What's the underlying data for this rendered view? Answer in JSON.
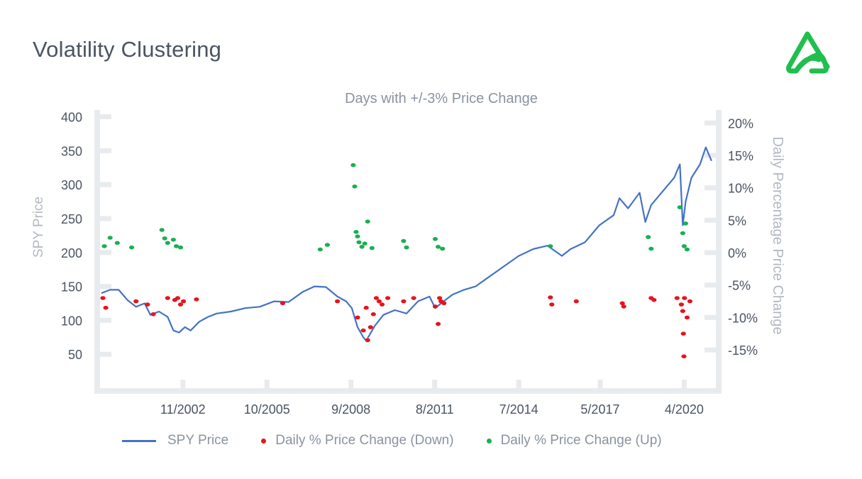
{
  "page": {
    "title": "Volatility Clustering"
  },
  "legend": {
    "items": [
      {
        "label": "SPY Price",
        "color": "#4472c4",
        "kind": "line"
      },
      {
        "label": "Daily % Price Change (Down)",
        "color": "#e8131c",
        "kind": "dot"
      },
      {
        "label": "Daily % Price Change (Up)",
        "color": "#1aaf54",
        "kind": "dot"
      }
    ]
  },
  "chart_data": {
    "type": "line",
    "title": "Days with +/-3% Price Change",
    "ylabel": "SPY Price",
    "y2label": "Daily Percentage Price Change",
    "xlabel": "",
    "xlim": [
      2000.0,
      2021.3
    ],
    "ylim": [
      0,
      410
    ],
    "y2lim": [
      -20.9,
      22.0
    ],
    "x_ticks": [
      {
        "label": "11/2002",
        "x": 2002.83
      },
      {
        "label": "10/2005",
        "x": 2005.75
      },
      {
        "label": "9/2008",
        "x": 2008.67
      },
      {
        "label": "8/2011",
        "x": 2011.58
      },
      {
        "label": "7/2014",
        "x": 2014.5
      },
      {
        "label": "5/2017",
        "x": 2017.33
      },
      {
        "label": "4/2020",
        "x": 2020.25
      }
    ],
    "y_ticks": [
      "50",
      "100",
      "150",
      "200",
      "250",
      "300",
      "350",
      "400"
    ],
    "y_tick_values": [
      50,
      100,
      150,
      200,
      250,
      300,
      350,
      400
    ],
    "y2_ticks": [
      "-15%",
      "-10%",
      "-5%",
      "0%",
      "5%",
      "10%",
      "15%",
      "20%"
    ],
    "y2_tick_values": [
      -15,
      -10,
      -5,
      0,
      5,
      10,
      15,
      20
    ],
    "grid": false,
    "legend_position": "bottom",
    "series": [
      {
        "name": "SPY Price",
        "color": "#4472c4",
        "axis": "left",
        "x": [
          2000.0,
          2000.3,
          2000.6,
          2000.9,
          2001.2,
          2001.5,
          2001.7,
          2002.0,
          2002.3,
          2002.5,
          2002.7,
          2002.9,
          2003.1,
          2003.4,
          2003.7,
          2004.0,
          2004.5,
          2005.0,
          2005.5,
          2006.0,
          2006.5,
          2007.0,
          2007.4,
          2007.8,
          2008.2,
          2008.5,
          2008.7,
          2008.9,
          2009.1,
          2009.2,
          2009.5,
          2009.8,
          2010.2,
          2010.6,
          2011.0,
          2011.4,
          2011.6,
          2011.8,
          2012.2,
          2012.6,
          2013.0,
          2013.5,
          2014.0,
          2014.5,
          2015.0,
          2015.5,
          2016.0,
          2016.3,
          2016.8,
          2017.3,
          2017.8,
          2018.0,
          2018.3,
          2018.7,
          2018.9,
          2019.1,
          2019.5,
          2019.9,
          2020.1,
          2020.2,
          2020.3,
          2020.5,
          2020.8,
          2021.0,
          2021.2
        ],
        "values": [
          140,
          145,
          145,
          130,
          120,
          125,
          108,
          113,
          105,
          85,
          82,
          90,
          85,
          98,
          105,
          110,
          113,
          118,
          120,
          128,
          127,
          142,
          150,
          149,
          135,
          128,
          118,
          90,
          75,
          70,
          92,
          108,
          115,
          110,
          128,
          135,
          118,
          125,
          138,
          145,
          150,
          165,
          180,
          195,
          205,
          210,
          195,
          205,
          215,
          240,
          255,
          280,
          265,
          288,
          245,
          270,
          290,
          310,
          330,
          240,
          275,
          310,
          330,
          355,
          335
        ]
      },
      {
        "name": "Daily % Price Change (Down)",
        "color": "#e8131c",
        "axis": "right",
        "kind": "scatter",
        "x": [
          2000.05,
          2000.15,
          2001.2,
          2001.6,
          2001.8,
          2002.3,
          2002.55,
          2002.65,
          2002.75,
          2002.85,
          2003.3,
          2006.3,
          2008.2,
          2008.9,
          2009.1,
          2009.2,
          2009.25,
          2009.35,
          2009.45,
          2009.55,
          2009.65,
          2009.75,
          2009.95,
          2010.5,
          2010.85,
          2011.6,
          2011.7,
          2011.75,
          2011.8,
          2011.9,
          2015.6,
          2015.65,
          2016.5,
          2018.1,
          2018.15,
          2019.1,
          2019.2,
          2020.0,
          2020.15,
          2020.2,
          2020.22,
          2020.24,
          2020.26,
          2020.35,
          2020.45
        ],
        "values": [
          -7.0,
          -8.5,
          -7.5,
          -8.0,
          -9.5,
          -7.0,
          -7.3,
          -7.0,
          -8.0,
          -7.5,
          -7.2,
          -7.8,
          -7.5,
          -10.0,
          -12.0,
          -8.5,
          -13.5,
          -11.5,
          -9.5,
          -7.0,
          -7.5,
          -8.0,
          -7.0,
          -7.5,
          -7.0,
          -8.3,
          -11.0,
          -7.0,
          -7.5,
          -7.8,
          -6.9,
          -8.0,
          -7.5,
          -7.8,
          -8.3,
          -7.0,
          -7.3,
          -7.0,
          -8.0,
          -9.0,
          -12.5,
          -16.0,
          -7.0,
          -10.0,
          -7.5
        ]
      },
      {
        "name": "Daily % Price Change (Up)",
        "color": "#1aaf54",
        "axis": "right",
        "kind": "scatter",
        "x": [
          2000.1,
          2000.3,
          2000.55,
          2001.05,
          2002.1,
          2002.2,
          2002.3,
          2002.5,
          2002.6,
          2002.75,
          2007.6,
          2007.85,
          2008.75,
          2008.8,
          2008.85,
          2008.9,
          2008.95,
          2009.05,
          2009.15,
          2009.25,
          2009.4,
          2010.5,
          2010.6,
          2011.6,
          2011.7,
          2011.85,
          2015.6,
          2019.0,
          2019.1,
          2020.1,
          2020.2,
          2020.25,
          2020.3,
          2020.35
        ],
        "values": [
          1.0,
          2.3,
          1.5,
          0.8,
          3.5,
          2.2,
          1.5,
          2.0,
          1.0,
          0.8,
          0.5,
          1.2,
          13.5,
          10.2,
          3.2,
          2.5,
          1.6,
          0.9,
          1.4,
          4.8,
          0.7,
          1.8,
          0.8,
          2.1,
          0.9,
          0.6,
          1.0,
          2.4,
          0.6,
          7.0,
          3.0,
          1.0,
          4.5,
          0.5
        ]
      }
    ]
  }
}
